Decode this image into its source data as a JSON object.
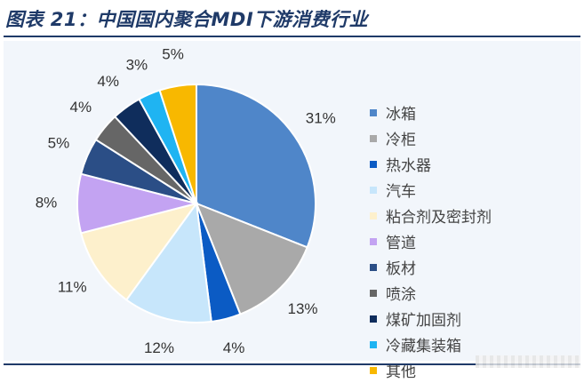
{
  "title": "图表 21：中国国内聚合MDI下游消费行业",
  "chart_data": {
    "type": "pie",
    "title": "图表 21：中国国内聚合MDI下游消费行业",
    "slices": [
      {
        "label": "冰箱",
        "value": 31,
        "display": "31%",
        "color": "#4f86c9"
      },
      {
        "label": "冷柜",
        "value": 13,
        "display": "13%",
        "color": "#a9a9a9"
      },
      {
        "label": "热水器",
        "value": 4,
        "display": "4%",
        "color": "#0b5bc4"
      },
      {
        "label": "汽车",
        "value": 12,
        "display": "12%",
        "color": "#c7e6fb"
      },
      {
        "label": "粘合剂及密封剂",
        "value": 11,
        "display": "11%",
        "color": "#fdf0cc"
      },
      {
        "label": "管道",
        "value": 8,
        "display": "8%",
        "color": "#c3a3f2"
      },
      {
        "label": "板材",
        "value": 5,
        "display": "5%",
        "color": "#2b4e86"
      },
      {
        "label": "喷涂",
        "value": 4,
        "display": "4%",
        "color": "#666666"
      },
      {
        "label": "煤矿加固剂",
        "value": 4,
        "display": "4%",
        "color": "#0f2d5c"
      },
      {
        "label": "冷藏集装箱",
        "value": 3,
        "display": "3%",
        "color": "#1fb4f2"
      },
      {
        "label": "其他",
        "value": 5,
        "display": "5%",
        "color": "#f8b800"
      }
    ],
    "legend_position": "right"
  }
}
